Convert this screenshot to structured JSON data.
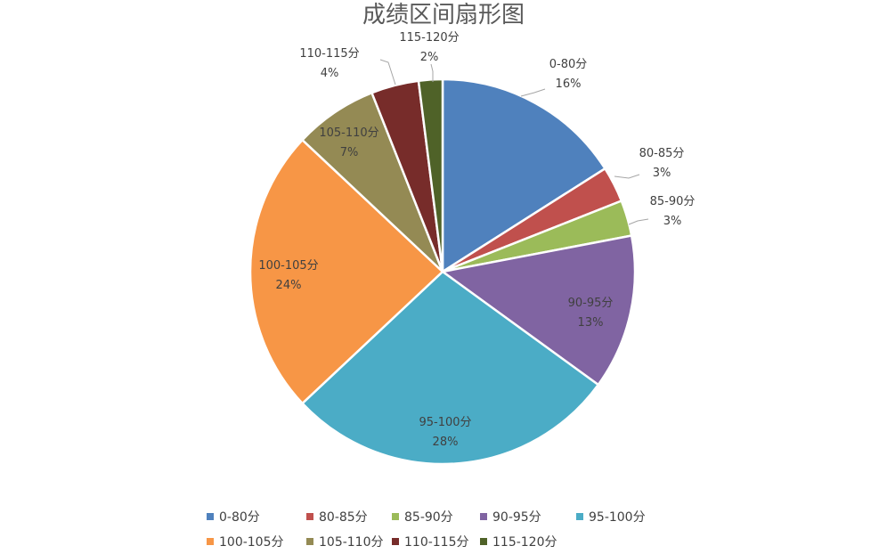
{
  "chart_data": {
    "type": "pie",
    "title": "成绩区间扇形图",
    "categories": [
      "0-80分",
      "80-85分",
      "85-90分",
      "90-95分",
      "95-100分",
      "100-105分",
      "105-110分",
      "110-115分",
      "115-120分"
    ],
    "values": [
      16,
      3,
      3,
      13,
      28,
      24,
      7,
      4,
      2
    ],
    "percent_labels": [
      "16%",
      "3%",
      "3%",
      "13%",
      "28%",
      "24%",
      "7%",
      "4%",
      "2%"
    ],
    "colors": [
      "#4F81BD",
      "#C0504D",
      "#9BBB59",
      "#8064A2",
      "#4BACC6",
      "#F79646",
      "#948A54",
      "#772C2A",
      "#4F6228"
    ],
    "legend_position": "bottom"
  }
}
